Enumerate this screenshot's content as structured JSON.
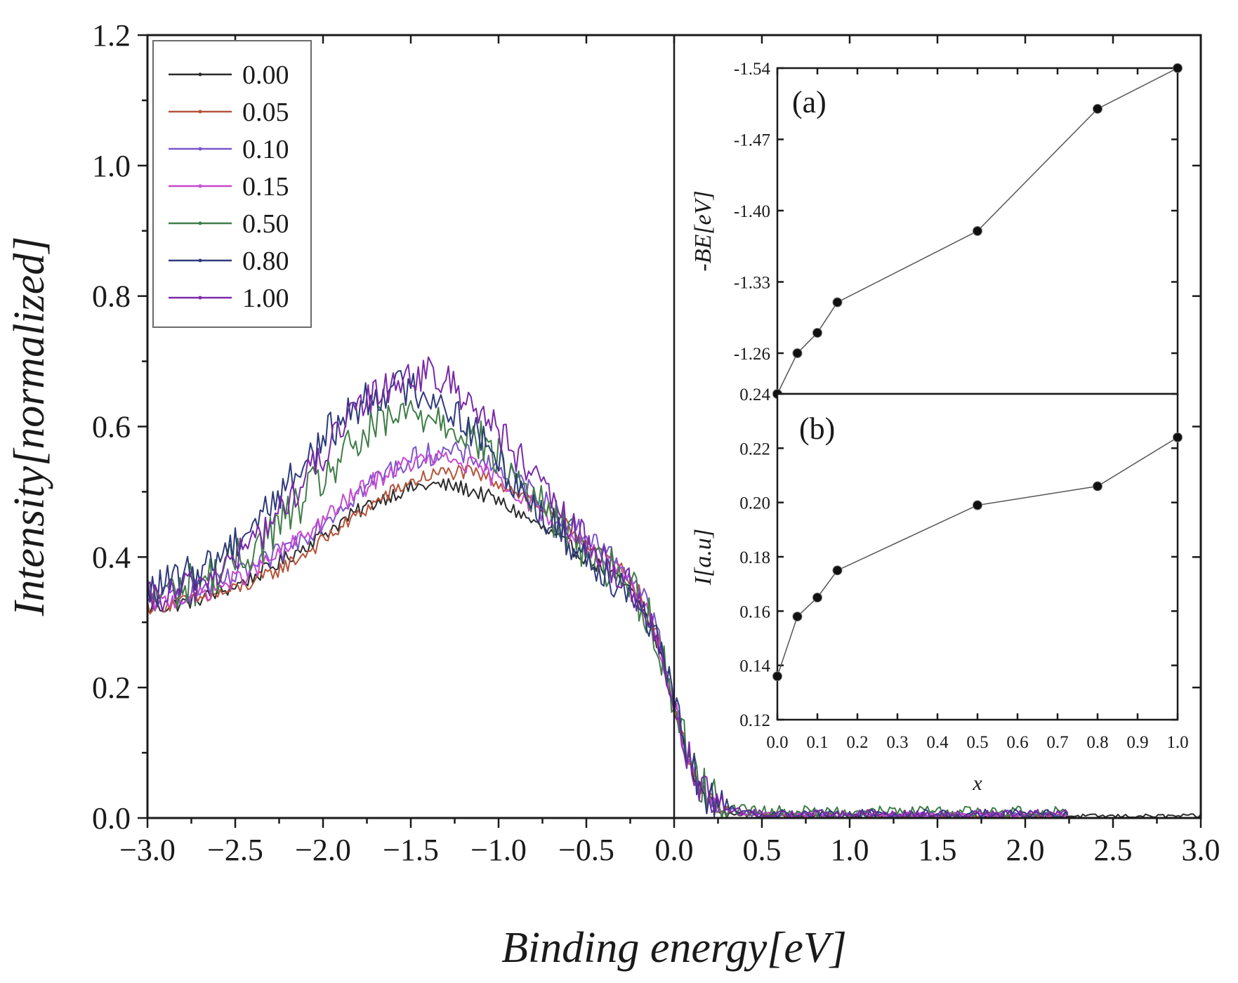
{
  "chart_data": [
    {
      "type": "line",
      "name": "main",
      "xlabel": "Binding energy[eV]",
      "ylabel": "Intensity[normalized]",
      "xlim": [
        -3.0,
        3.0
      ],
      "ylim": [
        0.0,
        1.2
      ],
      "xticks": [
        "−3.0",
        "−2.5",
        "−2.0",
        "−1.5",
        "−1.0",
        "−0.5",
        "0.0",
        "0.5",
        "1.0",
        "1.5",
        "2.0",
        "2.5",
        "3.0"
      ],
      "yticks": [
        "0.0",
        "0.2",
        "0.4",
        "0.6",
        "0.8",
        "1.0",
        "1.2"
      ],
      "legend_position": "top-left",
      "series": [
        {
          "name": "0.00",
          "color": "#2b2b2b",
          "params": {
            "base": 0.31,
            "peak": 0.51,
            "center": -1.35,
            "width": 0.95,
            "noise": 0.012,
            "tail": 0.003
          }
        },
        {
          "name": "0.05",
          "color": "#b5533a",
          "params": {
            "base": 0.32,
            "peak": 0.53,
            "center": -1.25,
            "width": 0.9,
            "noise": 0.012,
            "tail": 0.004
          }
        },
        {
          "name": "0.10",
          "color": "#7b55c9",
          "params": {
            "base": 0.33,
            "peak": 0.56,
            "center": -1.3,
            "width": 0.9,
            "noise": 0.018,
            "tail": 0.005
          }
        },
        {
          "name": "0.15",
          "color": "#c848d0",
          "params": {
            "base": 0.32,
            "peak": 0.55,
            "center": -1.35,
            "width": 0.9,
            "noise": 0.015,
            "tail": 0.005
          }
        },
        {
          "name": "0.50",
          "color": "#3f7d46",
          "params": {
            "base": 0.33,
            "peak": 0.62,
            "center": -1.45,
            "width": 0.85,
            "noise": 0.035,
            "tail": 0.01
          }
        },
        {
          "name": "0.80",
          "color": "#2e3a7a",
          "params": {
            "base": 0.33,
            "peak": 0.66,
            "center": -1.55,
            "width": 0.85,
            "noise": 0.03,
            "tail": 0.006
          }
        },
        {
          "name": "1.00",
          "color": "#7a2aa8",
          "params": {
            "base": 0.32,
            "peak": 0.68,
            "center": -1.45,
            "width": 0.85,
            "noise": 0.028,
            "tail": 0.006
          }
        }
      ]
    },
    {
      "type": "line",
      "name": "inset-a",
      "label": "(a)",
      "ylabel": "-BE[eV]",
      "xlim": [
        0.0,
        1.0
      ],
      "ylim": [
        -1.22,
        -1.54
      ],
      "yticks": [
        -1.26,
        -1.33,
        -1.4,
        -1.47,
        -1.54
      ],
      "ytick_labels": [
        "-1.26",
        "-1.33",
        "-1.40",
        "-1.47",
        "-1.54"
      ],
      "x": [
        0.0,
        0.05,
        0.1,
        0.15,
        0.5,
        0.8,
        1.0
      ],
      "y": [
        -1.22,
        -1.26,
        -1.28,
        -1.31,
        -1.38,
        -1.5,
        -1.54
      ]
    },
    {
      "type": "line",
      "name": "inset-b",
      "label": "(b)",
      "xlabel": "x",
      "ylabel": "I[a.u]",
      "xlim": [
        0.0,
        1.0
      ],
      "ylim": [
        0.12,
        0.24
      ],
      "yticks": [
        "0.12",
        "0.14",
        "0.16",
        "0.18",
        "0.20",
        "0.22",
        "0.24"
      ],
      "xticks": [
        "0.0",
        "0.1",
        "0.2",
        "0.3",
        "0.4",
        "0.5",
        "0.6",
        "0.7",
        "0.8",
        "0.9",
        "1.0"
      ],
      "x": [
        0.0,
        0.05,
        0.1,
        0.15,
        0.5,
        0.8,
        1.0
      ],
      "y": [
        0.136,
        0.158,
        0.165,
        0.175,
        0.199,
        0.206,
        0.224
      ]
    }
  ]
}
